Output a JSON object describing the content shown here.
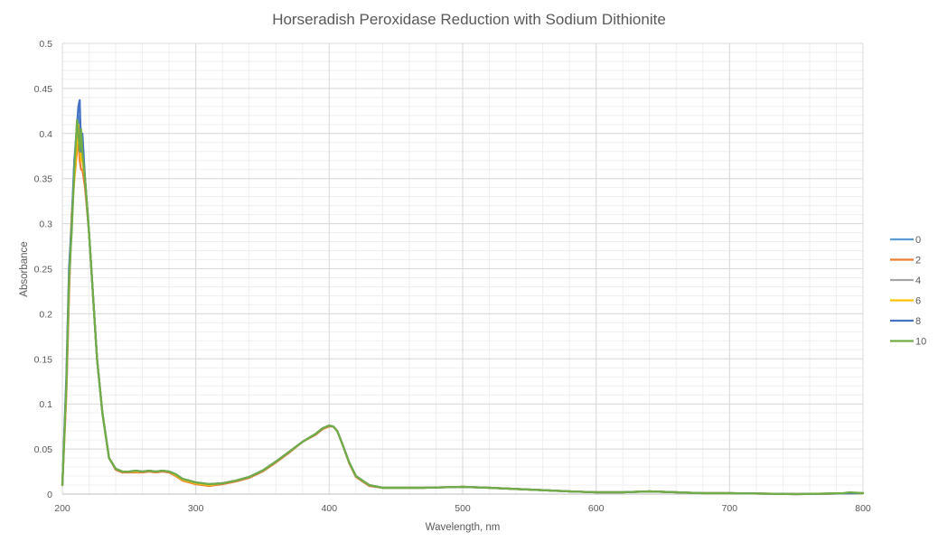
{
  "chart_data": {
    "type": "line",
    "title": "Horseradish Peroxidase Reduction with Sodium Dithionite",
    "xlabel": "Wavelength, nm",
    "ylabel": "Absorbance",
    "xlim": [
      200,
      800
    ],
    "ylim": [
      0,
      0.5
    ],
    "x_ticks": [
      "200",
      "300",
      "400",
      "500",
      "600",
      "700",
      "800"
    ],
    "y_ticks": [
      "0",
      "0.05",
      "0.1",
      "0.15",
      "0.2",
      "0.25",
      "0.3",
      "0.35",
      "0.4",
      "0.45",
      "0.5"
    ],
    "grid": "major and minor",
    "legend_position": "right",
    "series": [
      {
        "name": "0",
        "color": "#5B9BD5",
        "x": [
          200,
          203,
          205,
          207,
          209,
          211,
          212,
          213,
          214,
          215,
          217,
          220,
          223,
          226,
          230,
          235,
          240,
          245,
          250,
          255,
          260,
          265,
          270,
          275,
          280,
          285,
          290,
          300,
          310,
          320,
          330,
          340,
          350,
          360,
          370,
          380,
          390,
          395,
          400,
          403,
          406,
          410,
          415,
          420,
          430,
          440,
          450,
          470,
          500,
          520,
          550,
          580,
          600,
          620,
          640,
          660,
          680,
          700,
          750,
          800
        ],
        "y": [
          0.01,
          0.12,
          0.24,
          0.3,
          0.37,
          0.4,
          0.41,
          0.42,
          0.4,
          0.38,
          0.35,
          0.29,
          0.22,
          0.15,
          0.09,
          0.04,
          0.028,
          0.025,
          0.025,
          0.026,
          0.025,
          0.026,
          0.025,
          0.026,
          0.025,
          0.022,
          0.017,
          0.013,
          0.011,
          0.012,
          0.015,
          0.019,
          0.026,
          0.036,
          0.047,
          0.058,
          0.067,
          0.073,
          0.076,
          0.075,
          0.07,
          0.055,
          0.035,
          0.02,
          0.01,
          0.007,
          0.007,
          0.007,
          0.008,
          0.007,
          0.005,
          0.003,
          0.002,
          0.002,
          0.003,
          0.002,
          0.001,
          0.001,
          0.0,
          0.001
        ]
      },
      {
        "name": "2",
        "color": "#ED7D31",
        "x": [
          200,
          203,
          205,
          207,
          209,
          211,
          212,
          213,
          214,
          215,
          217,
          220,
          223,
          226,
          230,
          235,
          240,
          245,
          250,
          255,
          260,
          265,
          270,
          275,
          280,
          285,
          290,
          300,
          310,
          320,
          330,
          340,
          350,
          360,
          370,
          380,
          390,
          395,
          400,
          403,
          406,
          410,
          415,
          420,
          430,
          440,
          450,
          470,
          500,
          520,
          550,
          580,
          600,
          620,
          640,
          660,
          680,
          700,
          750,
          800
        ],
        "y": [
          0.01,
          0.11,
          0.22,
          0.31,
          0.35,
          0.38,
          0.4,
          0.37,
          0.36,
          0.36,
          0.34,
          0.29,
          0.22,
          0.15,
          0.09,
          0.04,
          0.027,
          0.024,
          0.024,
          0.024,
          0.024,
          0.025,
          0.024,
          0.025,
          0.024,
          0.02,
          0.015,
          0.011,
          0.009,
          0.011,
          0.014,
          0.018,
          0.025,
          0.035,
          0.046,
          0.058,
          0.066,
          0.072,
          0.075,
          0.075,
          0.07,
          0.055,
          0.034,
          0.019,
          0.009,
          0.007,
          0.007,
          0.007,
          0.008,
          0.007,
          0.005,
          0.003,
          0.002,
          0.002,
          0.003,
          0.002,
          0.001,
          0.001,
          0.0,
          0.001
        ]
      },
      {
        "name": "4",
        "color": "#A5A5A5",
        "x": [
          200,
          203,
          205,
          207,
          209,
          211,
          212,
          213,
          214,
          215,
          217,
          220,
          223,
          226,
          230,
          235,
          240,
          245,
          250,
          255,
          260,
          265,
          270,
          275,
          280,
          285,
          290,
          300,
          310,
          320,
          330,
          340,
          350,
          360,
          370,
          380,
          390,
          395,
          400,
          403,
          406,
          410,
          415,
          420,
          430,
          440,
          450,
          470,
          500,
          520,
          550,
          580,
          600,
          620,
          640,
          660,
          680,
          700,
          750,
          800
        ],
        "y": [
          0.01,
          0.12,
          0.23,
          0.3,
          0.36,
          0.39,
          0.4,
          0.39,
          0.38,
          0.37,
          0.35,
          0.29,
          0.22,
          0.15,
          0.09,
          0.04,
          0.028,
          0.025,
          0.025,
          0.025,
          0.025,
          0.026,
          0.025,
          0.026,
          0.025,
          0.021,
          0.016,
          0.012,
          0.01,
          0.012,
          0.015,
          0.019,
          0.026,
          0.036,
          0.047,
          0.058,
          0.067,
          0.073,
          0.076,
          0.075,
          0.07,
          0.055,
          0.035,
          0.02,
          0.01,
          0.007,
          0.007,
          0.007,
          0.008,
          0.007,
          0.005,
          0.003,
          0.002,
          0.002,
          0.003,
          0.002,
          0.001,
          0.001,
          0.0,
          0.001
        ]
      },
      {
        "name": "6",
        "color": "#FFC000",
        "x": [
          200,
          203,
          205,
          207,
          209,
          211,
          212,
          213,
          214,
          215,
          217,
          220,
          223,
          226,
          230,
          235,
          240,
          245,
          250,
          255,
          260,
          265,
          270,
          275,
          280,
          285,
          290,
          300,
          310,
          320,
          330,
          340,
          350,
          360,
          370,
          380,
          390,
          395,
          400,
          403,
          406,
          410,
          415,
          420,
          430,
          440,
          450,
          470,
          500,
          520,
          550,
          580,
          600,
          620,
          640,
          660,
          680,
          700,
          750,
          800
        ],
        "y": [
          0.01,
          0.12,
          0.24,
          0.31,
          0.35,
          0.39,
          0.41,
          0.39,
          0.37,
          0.37,
          0.35,
          0.29,
          0.22,
          0.15,
          0.09,
          0.04,
          0.028,
          0.025,
          0.025,
          0.025,
          0.025,
          0.026,
          0.025,
          0.026,
          0.025,
          0.021,
          0.016,
          0.012,
          0.01,
          0.012,
          0.015,
          0.019,
          0.026,
          0.036,
          0.047,
          0.058,
          0.067,
          0.073,
          0.076,
          0.075,
          0.07,
          0.055,
          0.035,
          0.02,
          0.01,
          0.007,
          0.007,
          0.007,
          0.008,
          0.007,
          0.005,
          0.003,
          0.002,
          0.002,
          0.003,
          0.002,
          0.001,
          0.001,
          0.0,
          0.001
        ]
      },
      {
        "name": "8",
        "color": "#4472C4",
        "x": [
          200,
          203,
          205,
          207,
          209,
          211,
          212,
          213,
          214,
          215,
          217,
          220,
          223,
          226,
          230,
          235,
          240,
          245,
          250,
          255,
          260,
          265,
          270,
          275,
          280,
          285,
          290,
          300,
          310,
          320,
          330,
          340,
          350,
          360,
          370,
          380,
          390,
          395,
          400,
          403,
          406,
          410,
          415,
          420,
          430,
          440,
          450,
          470,
          500,
          520,
          550,
          580,
          600,
          620,
          640,
          660,
          680,
          700,
          750,
          800
        ],
        "y": [
          0.01,
          0.13,
          0.25,
          0.3,
          0.37,
          0.41,
          0.43,
          0.437,
          0.38,
          0.4,
          0.35,
          0.29,
          0.22,
          0.15,
          0.09,
          0.04,
          0.028,
          0.025,
          0.025,
          0.026,
          0.025,
          0.026,
          0.025,
          0.026,
          0.025,
          0.022,
          0.017,
          0.013,
          0.011,
          0.012,
          0.015,
          0.019,
          0.026,
          0.036,
          0.047,
          0.058,
          0.067,
          0.073,
          0.076,
          0.075,
          0.07,
          0.055,
          0.035,
          0.02,
          0.01,
          0.007,
          0.007,
          0.007,
          0.008,
          0.007,
          0.005,
          0.003,
          0.002,
          0.002,
          0.003,
          0.002,
          0.001,
          0.001,
          0.0,
          0.001
        ]
      },
      {
        "name": "10",
        "color": "#70AD47",
        "x": [
          200,
          203,
          205,
          207,
          209,
          211,
          212,
          213,
          214,
          215,
          217,
          220,
          223,
          226,
          230,
          235,
          240,
          245,
          250,
          255,
          260,
          265,
          270,
          275,
          280,
          285,
          290,
          300,
          310,
          320,
          330,
          340,
          350,
          360,
          370,
          380,
          390,
          395,
          400,
          403,
          406,
          410,
          415,
          420,
          430,
          440,
          450,
          470,
          500,
          520,
          550,
          580,
          600,
          620,
          640,
          660,
          680,
          700,
          750,
          785,
          790,
          800
        ],
        "y": [
          0.01,
          0.12,
          0.24,
          0.29,
          0.36,
          0.415,
          0.4,
          0.38,
          0.405,
          0.38,
          0.35,
          0.29,
          0.22,
          0.15,
          0.09,
          0.04,
          0.028,
          0.025,
          0.025,
          0.026,
          0.025,
          0.026,
          0.025,
          0.026,
          0.025,
          0.022,
          0.017,
          0.013,
          0.011,
          0.012,
          0.015,
          0.019,
          0.026,
          0.036,
          0.047,
          0.058,
          0.067,
          0.073,
          0.076,
          0.075,
          0.07,
          0.055,
          0.035,
          0.02,
          0.01,
          0.007,
          0.007,
          0.007,
          0.008,
          0.007,
          0.005,
          0.003,
          0.002,
          0.002,
          0.003,
          0.002,
          0.001,
          0.001,
          0.0,
          0.001,
          0.002,
          0.001
        ]
      }
    ]
  }
}
